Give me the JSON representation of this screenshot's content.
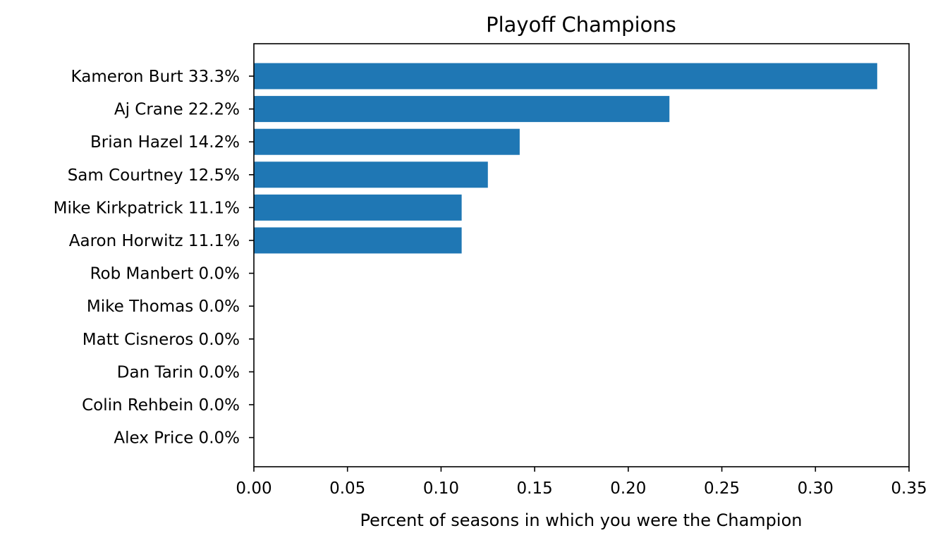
{
  "chart_data": {
    "type": "bar",
    "orientation": "horizontal",
    "title": "Playoff Champions",
    "xlabel": "Percent of seasons in which you were the Champion",
    "ylabel": "",
    "xlim": [
      0,
      0.35
    ],
    "xticks": [
      0.0,
      0.05,
      0.1,
      0.15,
      0.2,
      0.25,
      0.3,
      0.35
    ],
    "xtick_labels": [
      "0.00",
      "0.05",
      "0.10",
      "0.15",
      "0.20",
      "0.25",
      "0.30",
      "0.35"
    ],
    "grid": false,
    "bar_color": "#1f77b4",
    "categories": [
      "Kameron Burt 33.3%",
      "Aj Crane 22.2%",
      "Brian Hazel 14.2%",
      "Sam Courtney 12.5%",
      "Mike Kirkpatrick 11.1%",
      "Aaron Horwitz 11.1%",
      "Rob Manbert 0.0%",
      "Mike Thomas 0.0%",
      "Matt Cisneros 0.0%",
      "Dan Tarin 0.0%",
      "Colin Rehbein 0.0%",
      "Alex Price 0.0%"
    ],
    "values": [
      0.333,
      0.222,
      0.142,
      0.125,
      0.111,
      0.111,
      0.0,
      0.0,
      0.0,
      0.0,
      0.0,
      0.0
    ]
  }
}
